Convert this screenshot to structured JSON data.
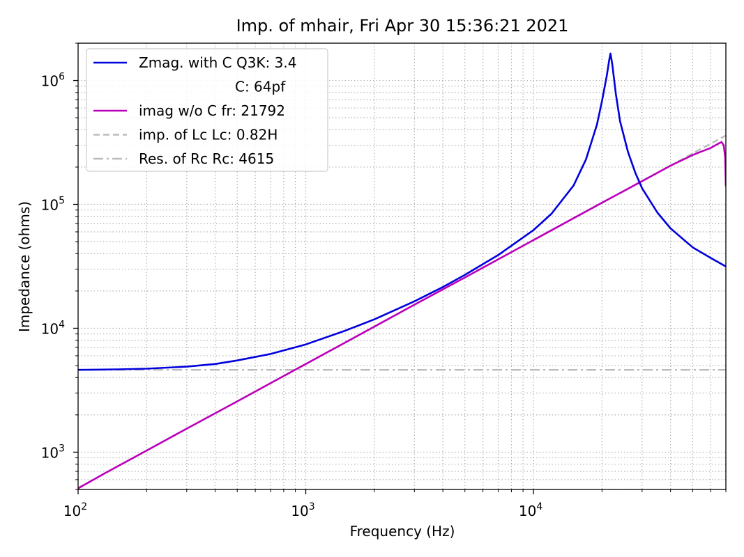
{
  "chart_data": {
    "type": "line",
    "title": "Imp. of mhair, Fri Apr 30 15:36:21 2021",
    "xlabel": "Frequency (Hz)",
    "ylabel": "Impedance (ohms)",
    "xscale": "log",
    "yscale": "log",
    "xlim": [
      100,
      70000
    ],
    "ylim": [
      500,
      2000000
    ],
    "grid": true,
    "legend_position": "top-left",
    "x_ticks": [
      {
        "value": 100,
        "base": "10",
        "exp": "2"
      },
      {
        "value": 1000,
        "base": "10",
        "exp": "3"
      },
      {
        "value": 10000,
        "base": "10",
        "exp": "4"
      }
    ],
    "y_ticks": [
      {
        "value": 1000,
        "base": "10",
        "exp": "3"
      },
      {
        "value": 10000,
        "base": "10",
        "exp": "4"
      },
      {
        "value": 100000,
        "base": "10",
        "exp": "5"
      },
      {
        "value": 1000000,
        "base": "10",
        "exp": "6"
      }
    ],
    "legend": [
      {
        "label": "Zmag. with C Q3K: 3.4",
        "style": "solid",
        "color": "#0000dd"
      },
      {
        "label": "C: 64pf",
        "style": "none",
        "color": ""
      },
      {
        "label": "imag w/o C fr: 21792",
        "style": "solid",
        "color": "#bb00bb"
      },
      {
        "label": "imp. of Lc  Lc: 0.82H",
        "style": "dashed",
        "color": "#bbbbbb"
      },
      {
        "label": "Res. of Rc Rc: 4615",
        "style": "dashdot",
        "color": "#bbbbbb"
      }
    ],
    "series": [
      {
        "name": "Zmag. with C Q3K: 3.4",
        "color": "#0000dd",
        "style": "solid",
        "x": [
          100,
          150,
          200,
          300,
          400,
          500,
          700,
          1000,
          1500,
          2000,
          3000,
          4000,
          5000,
          7000,
          10000,
          12000,
          15000,
          17000,
          19000,
          20000,
          21000,
          21500,
          21792,
          22200,
          23000,
          24000,
          26000,
          28000,
          30000,
          35000,
          40000,
          50000,
          60000,
          70000
        ],
        "y": [
          4620,
          4660,
          4720,
          4900,
          5150,
          5500,
          6200,
          7400,
          9600,
          11800,
          16500,
          21500,
          27000,
          39000,
          62000,
          84000,
          142000,
          230000,
          440000,
          680000,
          1100000,
          1450000,
          1650000,
          1350000,
          780000,
          470000,
          265000,
          180000,
          135000,
          86000,
          64000,
          45000,
          37000,
          31500
        ]
      },
      {
        "name": "imag w/o C fr: 21792",
        "color": "#bb00bb",
        "style": "solid",
        "x": [
          100,
          130,
          200,
          300,
          500,
          700,
          1000,
          2000,
          3000,
          5000,
          7000,
          10000,
          20000,
          30000,
          40000,
          50000,
          55000,
          60000,
          65000,
          67000,
          68500,
          69500,
          70000
        ],
        "y": [
          510,
          670,
          1030,
          1550,
          2570,
          3600,
          5150,
          10300,
          15500,
          25700,
          36000,
          51500,
          103000,
          154000,
          205000,
          250000,
          268000,
          285000,
          310000,
          318000,
          300000,
          240000,
          140000
        ]
      },
      {
        "name": "imp. of Lc  Lc: 0.82H",
        "color": "#bbbbbb",
        "style": "dashed",
        "x": [
          100,
          70000
        ],
        "y": [
          515,
          360000
        ]
      },
      {
        "name": "Res. of Rc Rc: 4615",
        "color": "#bbbbbb",
        "style": "dashdot",
        "x": [
          100,
          70000
        ],
        "y": [
          4615,
          4615
        ]
      }
    ]
  }
}
